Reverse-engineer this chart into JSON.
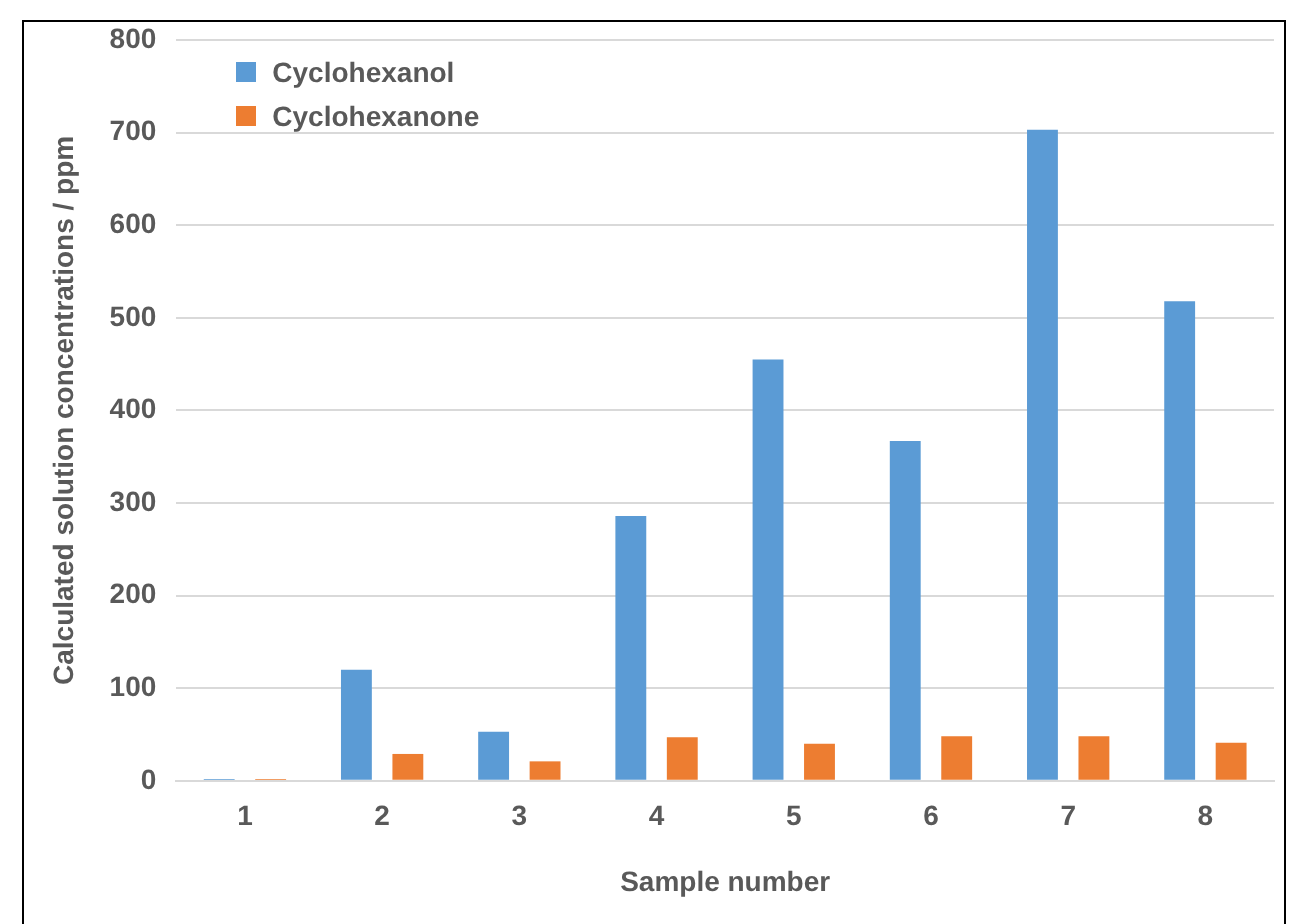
{
  "chart_data": {
    "type": "bar",
    "xlabel": "Sample number",
    "ylabel": "Calculated solution concentrations / ppm",
    "categories": [
      "1",
      "2",
      "3",
      "4",
      "5",
      "6",
      "7",
      "8"
    ],
    "series": [
      {
        "name": "Cyclohexanol",
        "color": "#5b9bd5",
        "values": [
          2,
          120,
          53,
          286,
          455,
          367,
          703,
          518
        ]
      },
      {
        "name": "Cyclohexanone",
        "color": "#ed7d31",
        "values": [
          2,
          29,
          21,
          47,
          40,
          48,
          48,
          41
        ]
      }
    ],
    "ylim": [
      0,
      800
    ],
    "yticks": [
      0,
      100,
      200,
      300,
      400,
      500,
      600,
      700,
      800
    ],
    "grid": "y",
    "legend": "top left"
  }
}
